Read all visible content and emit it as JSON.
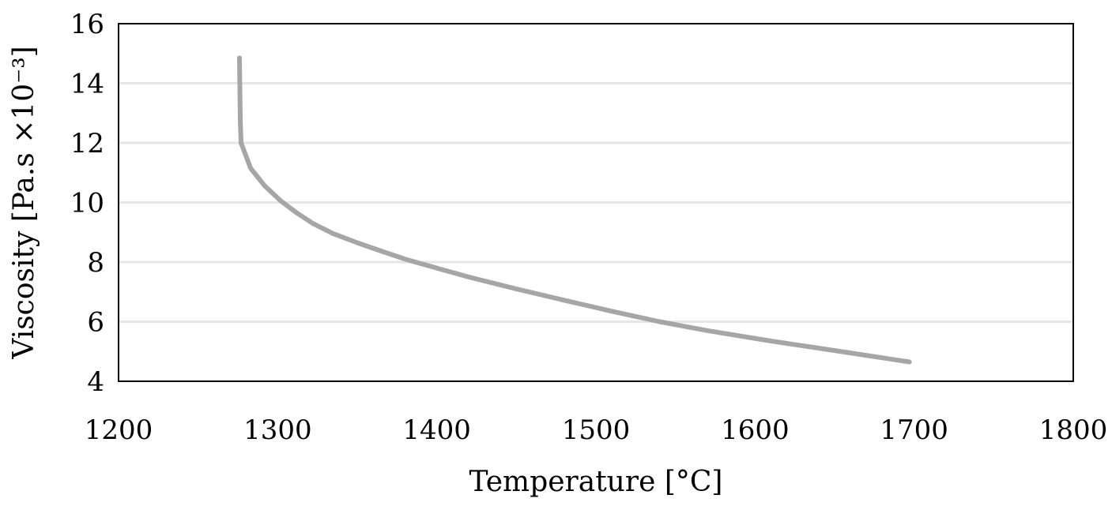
{
  "chart_data": {
    "type": "line",
    "title": "",
    "xlabel": "Temperature [°C]",
    "ylabel": "Viscosity [Pa.s ×10⁻³]",
    "xlim": [
      1200,
      1800
    ],
    "ylim": [
      4,
      16
    ],
    "xticks": [
      1200,
      1300,
      1400,
      1500,
      1600,
      1700,
      1800
    ],
    "yticks": [
      4,
      6,
      8,
      10,
      12,
      14,
      16
    ],
    "xtick_labels": [
      "1200",
      "1300",
      "1400",
      "1500",
      "1600",
      "1700",
      "1800"
    ],
    "ytick_labels": [
      "4",
      "6",
      "8",
      "10",
      "12",
      "14",
      "16"
    ],
    "grid": "horizontal",
    "legend": "none",
    "series": [
      {
        "name": "Viscosity",
        "color": "#a6a6a6",
        "x": [
          1276,
          1276.5,
          1277,
          1283,
          1292,
          1302,
          1312,
          1322,
          1335,
          1350,
          1365,
          1380,
          1400,
          1420,
          1450,
          1480,
          1510,
          1540,
          1570,
          1610,
          1660,
          1697
        ],
        "y": [
          14.85,
          12.8,
          12.0,
          11.15,
          10.55,
          10.05,
          9.65,
          9.3,
          8.95,
          8.65,
          8.37,
          8.1,
          7.8,
          7.5,
          7.1,
          6.72,
          6.35,
          6.0,
          5.7,
          5.35,
          4.95,
          4.65
        ]
      }
    ]
  }
}
